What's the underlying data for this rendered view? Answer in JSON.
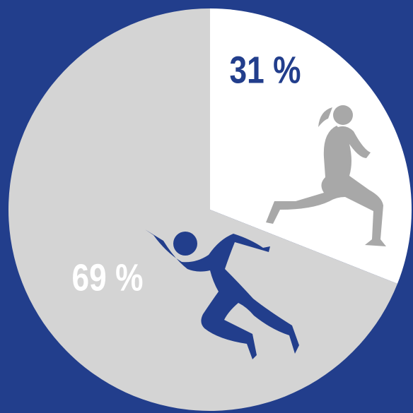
{
  "chart_data": {
    "type": "pie",
    "values": [
      31,
      69
    ],
    "value_labels": [
      "31 %",
      "69 %"
    ],
    "colors": [
      "#ffffff",
      "#d4d4d4"
    ],
    "label_colors": [
      "#223e8c",
      "#ffffff"
    ]
  }
}
